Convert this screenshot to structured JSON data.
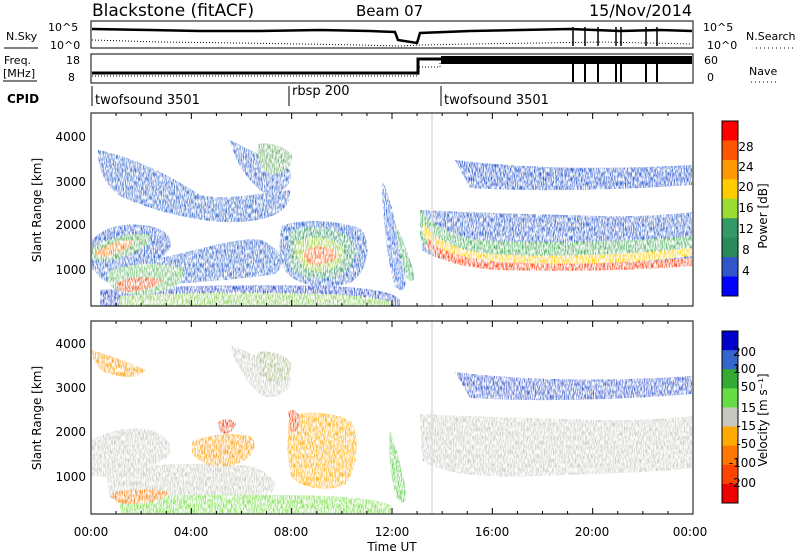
{
  "header": {
    "station": "Blackstone (fitACF)",
    "beam": "Beam 07",
    "date": "15/Nov/2014"
  },
  "top_panels": {
    "nsky_label": "N.Sky",
    "nsky_ticks": [
      "10^5",
      "10^0"
    ],
    "nsearch_label": "N.Search",
    "nsearch_ticks": [
      "10^5",
      "10^0"
    ],
    "freq_label_line1": "Freq.",
    "freq_label_line2": "[MHz]",
    "freq_ticks": [
      "18",
      "8"
    ],
    "nave_label": "Nave",
    "nave_ticks": [
      "60",
      "0"
    ],
    "cpid_label": "CPID",
    "cpid_segments": [
      {
        "label": "twofsound 3501",
        "start_hour": 0
      },
      {
        "label": "rbsp 200",
        "start_hour": 7.85
      },
      {
        "label": "twofsound 3501",
        "start_hour": 13.8
      }
    ]
  },
  "power_panel": {
    "ylabel": "Slant Range [km]",
    "colorbar_label": "Power [dB]",
    "colorbar_ticks": [
      "28",
      "24",
      "20",
      "16",
      "12",
      "8",
      "4"
    ],
    "colorbar_colors": [
      "#ff0000",
      "#ff5500",
      "#ff9900",
      "#ffcc00",
      "#99dd33",
      "#339966",
      "#2a8a5a",
      "#3355cc",
      "#0000ff"
    ]
  },
  "velocity_panel": {
    "ylabel": "Slant Range [km]",
    "colorbar_label": "Velocity [m s⁻¹]",
    "colorbar_ticks": [
      "200",
      "100",
      "50",
      "15",
      "-15",
      "-50",
      "-100",
      "-200"
    ],
    "colorbar_colors": [
      "#0000cc",
      "#3366cc",
      "#33aa33",
      "#66dd44",
      "#c8c8c0",
      "#ffaa00",
      "#ff7700",
      "#ff4400",
      "#ee0000"
    ]
  },
  "xaxis": {
    "label": "Time UT",
    "ticks": [
      "00:00",
      "04:00",
      "08:00",
      "12:00",
      "16:00",
      "20:00",
      "00:00"
    ]
  },
  "chart_data": {
    "type": "heatmap",
    "title": "Blackstone (fitACF)",
    "subtitle": "Beam 07",
    "date": "15/Nov/2014",
    "xlabel": "Time UT",
    "ylabel": "Slant Range [km]",
    "xlim": [
      0,
      24
    ],
    "ylim": [
      0,
      4500
    ],
    "yticks": [
      1000,
      2000,
      3000,
      4000
    ],
    "power_colorbar": {
      "label": "Power [dB]",
      "ticks": [
        4,
        8,
        12,
        16,
        20,
        24,
        28
      ]
    },
    "velocity_colorbar": {
      "label": "Velocity [m s⁻¹]",
      "ticks": [
        -200,
        -100,
        -50,
        -15,
        15,
        50,
        100,
        200
      ]
    },
    "frequency_MHz": [
      {
        "from_hour": 0,
        "to_hour": 13.3,
        "value": 10
      },
      {
        "from_hour": 13.3,
        "to_hour": 24,
        "value": 18
      }
    ]
  }
}
